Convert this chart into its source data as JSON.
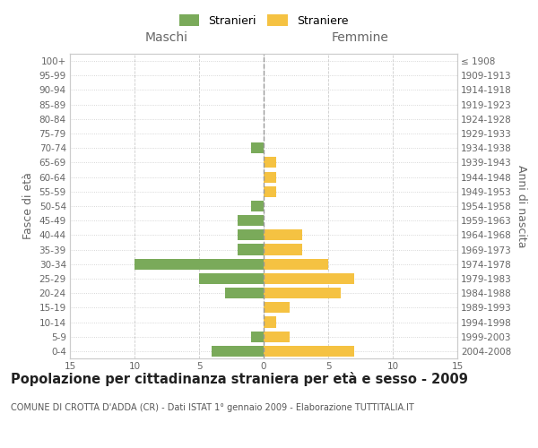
{
  "age_groups": [
    "0-4",
    "5-9",
    "10-14",
    "15-19",
    "20-24",
    "25-29",
    "30-34",
    "35-39",
    "40-44",
    "45-49",
    "50-54",
    "55-59",
    "60-64",
    "65-69",
    "70-74",
    "75-79",
    "80-84",
    "85-89",
    "90-94",
    "95-99",
    "100+"
  ],
  "birth_years": [
    "2004-2008",
    "1999-2003",
    "1994-1998",
    "1989-1993",
    "1984-1988",
    "1979-1983",
    "1974-1978",
    "1969-1973",
    "1964-1968",
    "1959-1963",
    "1954-1958",
    "1949-1953",
    "1944-1948",
    "1939-1943",
    "1934-1938",
    "1929-1933",
    "1924-1928",
    "1919-1923",
    "1914-1918",
    "1909-1913",
    "≤ 1908"
  ],
  "males": [
    4,
    1,
    0,
    0,
    3,
    5,
    10,
    2,
    2,
    2,
    1,
    0,
    0,
    0,
    1,
    0,
    0,
    0,
    0,
    0,
    0
  ],
  "females": [
    7,
    2,
    1,
    2,
    6,
    7,
    5,
    3,
    3,
    0,
    0,
    1,
    1,
    1,
    0,
    0,
    0,
    0,
    0,
    0,
    0
  ],
  "male_color": "#7aaa5a",
  "female_color": "#f5c242",
  "title": "Popolazione per cittadinanza straniera per età e sesso - 2009",
  "subtitle": "COMUNE DI CROTTA D'ADDA (CR) - Dati ISTAT 1° gennaio 2009 - Elaborazione TUTTITALIA.IT",
  "legend_male": "Stranieri",
  "legend_female": "Straniere",
  "header_left": "Maschi",
  "header_right": "Femmine",
  "ylabel_left": "Fasce di età",
  "ylabel_right": "Anni di nascita",
  "xlim": 15,
  "background_color": "#ffffff",
  "grid_color": "#cccccc",
  "dotted_grid_color": "#cccccc",
  "centerline_color": "#999999",
  "tick_label_fontsize": 7.5,
  "axis_label_fontsize": 9,
  "header_fontsize": 10,
  "title_fontsize": 10.5,
  "subtitle_fontsize": 7
}
